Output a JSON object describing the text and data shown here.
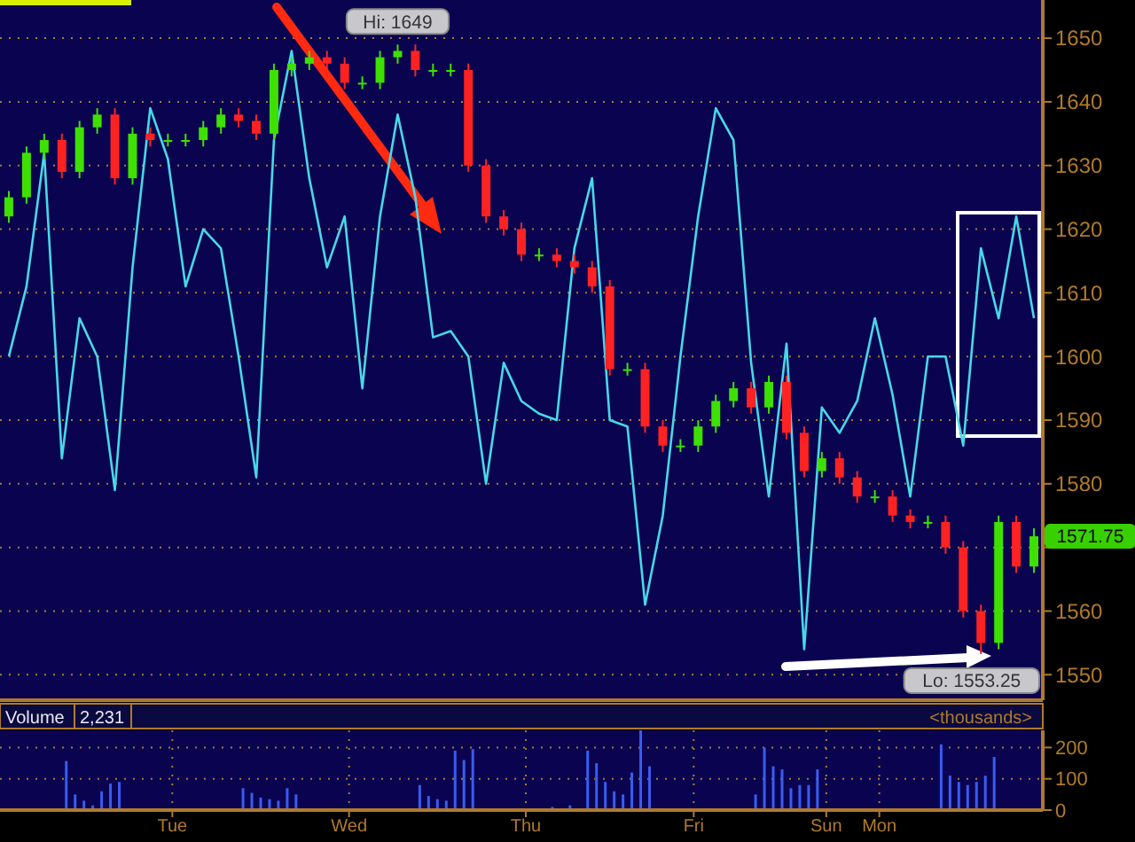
{
  "chart_data": [
    {
      "type": "candlestick",
      "ylim": [
        1546,
        1656
      ],
      "categories": [
        null,
        null,
        null,
        null,
        null,
        null,
        null,
        null,
        null,
        null,
        null,
        null,
        null,
        null,
        null,
        null,
        null,
        null,
        null,
        null,
        null,
        null,
        null,
        null,
        null,
        null,
        null,
        null,
        null,
        null,
        null,
        null,
        null,
        null,
        null,
        null,
        null,
        null,
        null,
        null,
        null,
        null,
        null,
        null,
        null,
        null,
        null,
        null,
        null,
        null,
        null,
        null,
        null,
        null,
        null,
        null,
        null,
        null,
        null
      ],
      "yticks": [
        1550,
        1560,
        {
          "value": 1570,
          "label": null
        },
        1580,
        1590,
        1600,
        1610,
        1620,
        1630,
        1640,
        1650
      ],
      "grid": "y",
      "tick_labels": "y",
      "annotations": [
        "Hi: 1649",
        "Lo: 1553.25",
        "1571.75"
      ],
      "series": [
        {
          "ohlc": [
            [
              1622,
              1626,
              1621,
              1625
            ],
            [
              1625,
              1633,
              1624,
              1632
            ],
            [
              1632,
              1635,
              1631,
              1634
            ],
            [
              1634,
              1635,
              1628,
              1629
            ],
            [
              1629,
              1637,
              1628,
              1636
            ],
            [
              1636,
              1639,
              1635,
              1638
            ],
            [
              1638,
              1639,
              1627,
              1628
            ],
            [
              1628,
              1636,
              1627,
              1635
            ],
            [
              1635,
              1636,
              1633,
              1634
            ],
            [
              1634,
              1635,
              1633,
              1634
            ],
            [
              1634,
              1635,
              1633,
              1634
            ],
            [
              1634,
              1637,
              1633,
              1636
            ],
            [
              1636,
              1639,
              1635,
              1638
            ],
            [
              1638,
              1639,
              1636,
              1637
            ],
            [
              1637,
              1638,
              1634,
              1635
            ],
            [
              1635,
              1646,
              1634,
              1645
            ],
            [
              1645,
              1647,
              1644,
              1646
            ],
            [
              1646,
              1648,
              1645,
              1647
            ],
            [
              1647,
              1648,
              1645,
              1646
            ],
            [
              1646,
              1647,
              1642,
              1643
            ],
            [
              1643,
              1644,
              1642,
              1643
            ],
            [
              1643,
              1648,
              1642,
              1647
            ],
            [
              1647,
              1649,
              1646,
              1648
            ],
            [
              1648,
              1649,
              1644,
              1645
            ],
            [
              1645,
              1646,
              1644,
              1645
            ],
            [
              1645,
              1646,
              1644,
              1645
            ],
            [
              1645,
              1646,
              1629,
              1630
            ],
            [
              1630,
              1631,
              1621,
              1622
            ],
            [
              1622,
              1623,
              1619,
              1620
            ],
            [
              1620,
              1621,
              1615,
              1616
            ],
            [
              1616,
              1617,
              1615,
              1616
            ],
            [
              1616,
              1617,
              1614,
              1615
            ],
            [
              1615,
              1616,
              1613,
              1614
            ],
            [
              1614,
              1615,
              1610,
              1611
            ],
            [
              1611,
              1612,
              1597,
              1598
            ],
            [
              1598,
              1599,
              1597,
              1598
            ],
            [
              1598,
              1599,
              1588,
              1589
            ],
            [
              1589,
              1590,
              1585,
              1586
            ],
            [
              1586,
              1587,
              1585,
              1586
            ],
            [
              1586,
              1590,
              1585,
              1589
            ],
            [
              1589,
              1594,
              1588,
              1593
            ],
            [
              1593,
              1596,
              1592,
              1595
            ],
            [
              1595,
              1596,
              1591,
              1592
            ],
            [
              1592,
              1597,
              1591,
              1596
            ],
            [
              1596,
              1597,
              1587,
              1588
            ],
            [
              1588,
              1589,
              1581,
              1582
            ],
            [
              1582,
              1585,
              1581,
              1584
            ],
            [
              1584,
              1585,
              1580,
              1581
            ],
            [
              1581,
              1582,
              1577,
              1578
            ],
            [
              1578,
              1579,
              1577,
              1578
            ],
            [
              1578,
              1579,
              1574,
              1575
            ],
            [
              1575,
              1576,
              1573,
              1574
            ],
            [
              1574,
              1575,
              1573,
              1574
            ],
            [
              1574,
              1575,
              1569,
              1570
            ],
            [
              1570,
              1571,
              1559,
              1560
            ],
            [
              1560,
              1561,
              1553.25,
              1555
            ],
            [
              1555,
              1575,
              1554,
              1574
            ],
            [
              1574,
              1575,
              1566,
              1567
            ],
            [
              1567,
              1573,
              1566,
              1571.75
            ]
          ]
        },
        {
          "type": "line",
          "color": "#48d8e8",
          "values": [
            1600,
            1611,
            1632,
            1584,
            1606,
            1600,
            1579,
            1614,
            1639,
            1631,
            1611,
            1620,
            1617,
            1600,
            1581,
            1634,
            1648,
            1628,
            1614,
            1622,
            1595,
            1622,
            1638,
            1625,
            1603,
            1604,
            1600,
            1580,
            1599,
            1593,
            1591,
            1590,
            1617,
            1628,
            1590,
            1589,
            1561,
            1575,
            1600,
            1622,
            1639,
            1634,
            1599,
            1578,
            1602,
            1554,
            1592,
            1588,
            1593,
            1606,
            1594,
            1578,
            1600,
            1600,
            1586,
            1617,
            1606,
            1622,
            1606
          ]
        }
      ]
    },
    {
      "type": "bar",
      "ylim": [
        0,
        255
      ],
      "yticks": [
        0,
        100,
        200
      ],
      "grid": true,
      "categories": [
        null,
        null,
        null,
        null,
        null,
        null,
        null,
        null,
        null,
        null,
        null,
        null,
        null,
        null,
        null,
        null,
        null,
        null,
        null,
        "Tue",
        null,
        null,
        null,
        null,
        null,
        null,
        null,
        null,
        null,
        null,
        null,
        null,
        null,
        null,
        null,
        null,
        null,
        null,
        null,
        "Wed",
        null,
        null,
        null,
        null,
        null,
        null,
        null,
        null,
        null,
        null,
        null,
        null,
        null,
        null,
        null,
        null,
        null,
        null,
        null,
        "Thu",
        null,
        null,
        null,
        null,
        null,
        null,
        null,
        null,
        null,
        null,
        null,
        null,
        null,
        null,
        null,
        null,
        null,
        null,
        "Fri",
        null,
        null,
        null,
        null,
        null,
        null,
        null,
        null,
        null,
        null,
        null,
        null,
        null,
        null,
        "Sun",
        null,
        null,
        null,
        null,
        null,
        "Mon",
        null,
        null,
        null,
        null,
        null,
        null,
        null,
        null,
        null,
        null,
        null,
        null,
        null,
        null,
        null,
        null,
        null,
        null
      ],
      "annotations": [
        "Volume",
        "2,231",
        "<thousands>"
      ],
      "series": [
        {
          "color": "#3a5cf0",
          "values": [
            null,
            null,
            null,
            null,
            null,
            null,
            null,
            157,
            50,
            30,
            15,
            60,
            85,
            90,
            null,
            null,
            null,
            null,
            null,
            null,
            null,
            null,
            null,
            null,
            null,
            null,
            null,
            70,
            55,
            40,
            35,
            30,
            70,
            50,
            null,
            null,
            null,
            null,
            null,
            null,
            null,
            null,
            null,
            null,
            null,
            null,
            null,
            80,
            45,
            35,
            30,
            190,
            160,
            195,
            null,
            null,
            null,
            null,
            null,
            null,
            null,
            null,
            10,
            null,
            15,
            null,
            190,
            150,
            90,
            60,
            50,
            120,
            255,
            140,
            null,
            null,
            null,
            null,
            null,
            null,
            null,
            null,
            null,
            null,
            null,
            50,
            200,
            140,
            130,
            70,
            80,
            80,
            130,
            null,
            null,
            null,
            null,
            null,
            null,
            null,
            null,
            null,
            null,
            null,
            null,
            null,
            210,
            110,
            90,
            80,
            90,
            110,
            170,
            null,
            null,
            null,
            null,
            null
          ]
        }
      ]
    }
  ]
}
